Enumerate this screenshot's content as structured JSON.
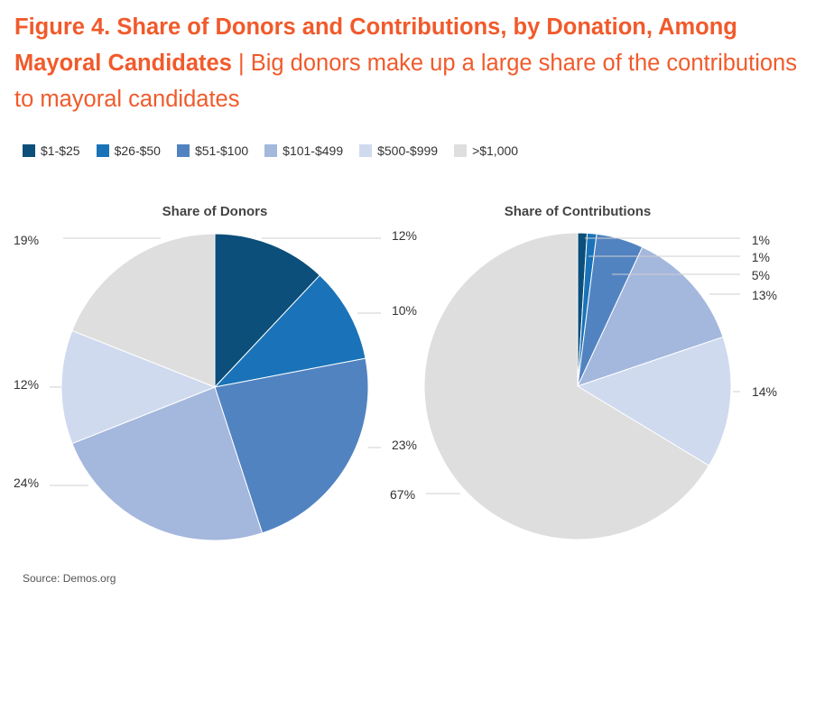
{
  "figure": {
    "title_bold": "Figure 4. Share of Donors and Contributions, by Donation, Among Mayoral Candidates",
    "separator": " | ",
    "title_rest": "Big donors make up a large share of the contributions to mayoral candidates"
  },
  "legend": [
    {
      "label": "$1-$25",
      "color": "#0b4f7a"
    },
    {
      "label": "$26-$50",
      "color": "#1a73b8"
    },
    {
      "label": "$51-$100",
      "color": "#5283c1"
    },
    {
      "label": "$101-$499",
      "color": "#a4b7dd"
    },
    {
      "label": "$500-$999",
      "color": "#cfdaef"
    },
    {
      "label": ">$1,000",
      "color": "#dedede"
    }
  ],
  "chart_data": [
    {
      "type": "pie",
      "title": "Share of Donors",
      "categories": [
        "$1-$25",
        "$26-$50",
        "$51-$100",
        "$101-$499",
        "$500-$999",
        ">$1,000"
      ],
      "values": [
        12,
        10,
        23,
        24,
        12,
        19
      ],
      "labels": [
        "12%",
        "10%",
        "23%",
        "24%",
        "12%",
        "19%"
      ]
    },
    {
      "type": "pie",
      "title": "Share of Contributions",
      "categories": [
        "$1-$25",
        "$26-$50",
        "$51-$100",
        "$101-$499",
        "$500-$999",
        ">$1,000"
      ],
      "values": [
        1,
        1,
        5,
        13,
        14,
        67
      ],
      "labels": [
        "1%",
        "1%",
        "5%",
        "13%",
        "14%",
        "67%"
      ]
    }
  ],
  "source": "Source: Demos.org"
}
